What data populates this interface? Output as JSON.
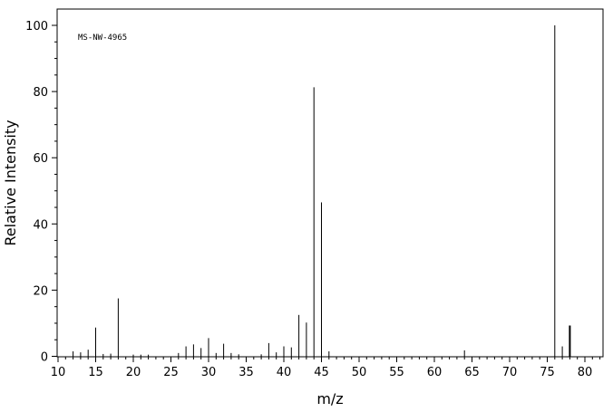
{
  "chart_data": {
    "type": "bar",
    "title": "",
    "annotation": "MS-NW-4965",
    "xlabel": "m/z",
    "ylabel": "Relative Intensity",
    "xlim": [
      10,
      82
    ],
    "ylim": [
      0,
      105
    ],
    "x_ticks": [
      10,
      15,
      20,
      25,
      30,
      35,
      40,
      45,
      50,
      55,
      60,
      65,
      70,
      75,
      80
    ],
    "y_ticks": [
      0,
      20,
      40,
      60,
      80,
      100
    ],
    "grid": false,
    "peaks": [
      {
        "x": 12,
        "y": 1.5
      },
      {
        "x": 13,
        "y": 1.2
      },
      {
        "x": 14,
        "y": 2.0
      },
      {
        "x": 15,
        "y": 8.7
      },
      {
        "x": 16,
        "y": 0.7
      },
      {
        "x": 17,
        "y": 0.8
      },
      {
        "x": 18,
        "y": 17.5
      },
      {
        "x": 20,
        "y": 0.5
      },
      {
        "x": 21,
        "y": 0.5
      },
      {
        "x": 22,
        "y": 0.5
      },
      {
        "x": 26,
        "y": 1.0
      },
      {
        "x": 27,
        "y": 3.0
      },
      {
        "x": 28,
        "y": 3.6
      },
      {
        "x": 29,
        "y": 2.5
      },
      {
        "x": 30,
        "y": 5.5
      },
      {
        "x": 31,
        "y": 1.0
      },
      {
        "x": 32,
        "y": 3.8
      },
      {
        "x": 33,
        "y": 1.0
      },
      {
        "x": 34,
        "y": 0.6
      },
      {
        "x": 37,
        "y": 0.6
      },
      {
        "x": 38,
        "y": 4.0
      },
      {
        "x": 39,
        "y": 1.2
      },
      {
        "x": 40,
        "y": 3.0
      },
      {
        "x": 41,
        "y": 2.7
      },
      {
        "x": 42,
        "y": 12.5
      },
      {
        "x": 43,
        "y": 10.2
      },
      {
        "x": 44,
        "y": 81.3
      },
      {
        "x": 45,
        "y": 46.5
      },
      {
        "x": 46,
        "y": 1.5
      },
      {
        "x": 64,
        "y": 1.8
      },
      {
        "x": 76,
        "y": 100
      },
      {
        "x": 77,
        "y": 3.0
      },
      {
        "x": 78,
        "y": 9.3
      }
    ]
  }
}
